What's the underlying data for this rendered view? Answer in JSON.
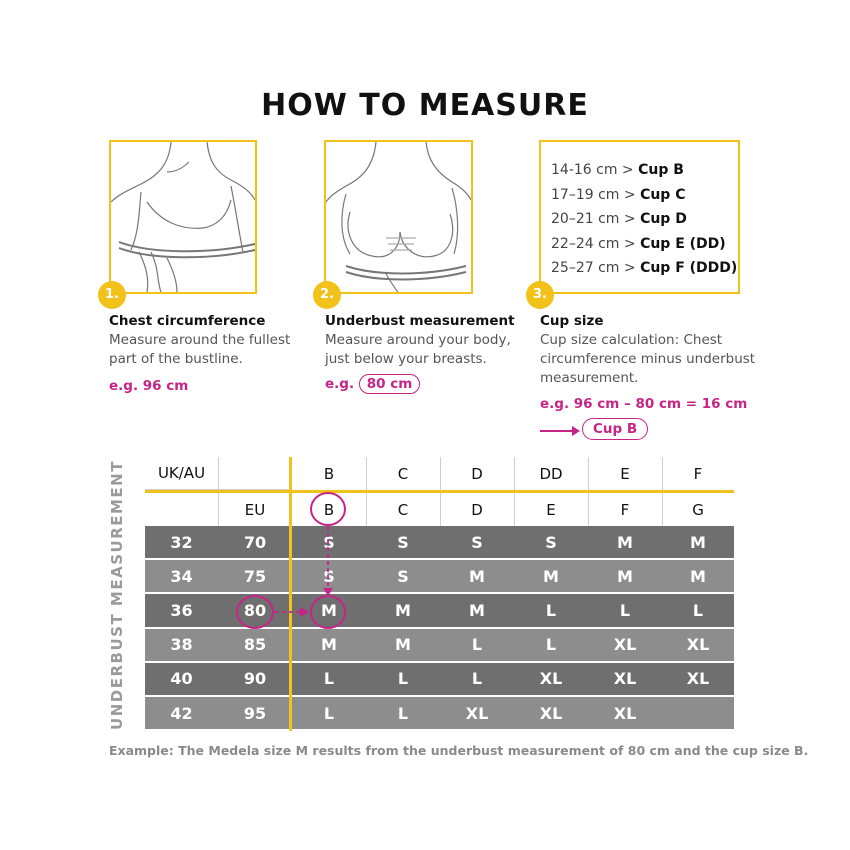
{
  "title": "HOW TO MEASURE",
  "steps": [
    {
      "number": "1.",
      "title": "Chest circumference",
      "desc1": "Measure around the fullest",
      "desc2": "part of the bustline.",
      "example": "e.g. 96 cm"
    },
    {
      "number": "2.",
      "title": "Underbust measurement",
      "desc1": "Measure around your body,",
      "desc2": "just below your breasts.",
      "example_prefix": "e.g.",
      "example_value": "80 cm"
    },
    {
      "number": "3.",
      "title": "Cup size",
      "desc1": "Cup size calculation: Chest",
      "desc2": "circumference minus underbust",
      "desc3": "measurement.",
      "example": "e.g. 96 cm – 80 cm = 16 cm",
      "result": "Cup B"
    }
  ],
  "cup_table": [
    {
      "range": "14-16 cm >",
      "cup": "Cup B"
    },
    {
      "range": "17–19 cm >",
      "cup": "Cup C"
    },
    {
      "range": "20–21 cm >",
      "cup": "Cup D"
    },
    {
      "range": "22–24 cm >",
      "cup": "Cup E (DD)"
    },
    {
      "range": "25–27 cm >",
      "cup": "Cup F (DDD)"
    }
  ],
  "size_table": {
    "side_label": "UNDERBUST MEASUREMENT",
    "uk_label": "UK/AU",
    "eu_label": "EU",
    "uk_cups": [
      "B",
      "C",
      "D",
      "DD",
      "E",
      "F"
    ],
    "eu_cups": [
      "B",
      "C",
      "D",
      "E",
      "F",
      "G"
    ],
    "rows": [
      {
        "uk": "32",
        "eu": "70",
        "sizes": [
          "S",
          "S",
          "S",
          "S",
          "M",
          "M"
        ]
      },
      {
        "uk": "34",
        "eu": "75",
        "sizes": [
          "S",
          "S",
          "M",
          "M",
          "M",
          "M"
        ]
      },
      {
        "uk": "36",
        "eu": "80",
        "sizes": [
          "M",
          "M",
          "M",
          "L",
          "L",
          "L"
        ]
      },
      {
        "uk": "38",
        "eu": "85",
        "sizes": [
          "M",
          "M",
          "L",
          "L",
          "XL",
          "XL"
        ]
      },
      {
        "uk": "40",
        "eu": "90",
        "sizes": [
          "L",
          "L",
          "L",
          "XL",
          "XL",
          "XL"
        ]
      },
      {
        "uk": "42",
        "eu": "95",
        "sizes": [
          "L",
          "L",
          "XL",
          "XL",
          "XL",
          ""
        ]
      }
    ]
  },
  "footer": "Example: The Medela size M results from the underbust measurement of 80 cm and the cup size B.",
  "colors": {
    "accent_yellow": "#f2c21b",
    "highlight_magenta": "#c72487",
    "row_dark": "#6f6f6f",
    "row_light": "#8d8d8d"
  }
}
